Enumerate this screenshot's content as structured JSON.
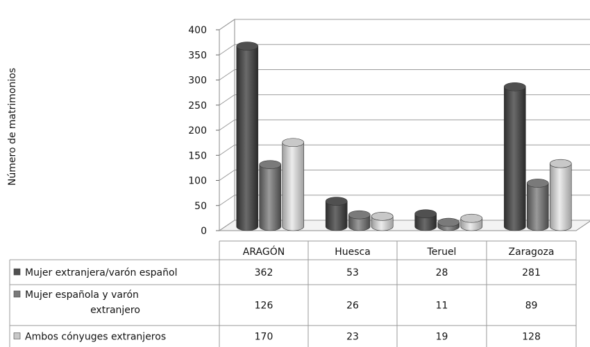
{
  "chart_data": {
    "type": "bar",
    "variant": "3d-cylinder-with-data-table",
    "ylabel": "Número de matrimonios",
    "xlabel": "",
    "title": "",
    "ylim": [
      0,
      400
    ],
    "yticks": [
      0,
      50,
      100,
      150,
      200,
      250,
      300,
      350,
      400
    ],
    "grid": true,
    "categories": [
      "ARAGÓN",
      "Huesca",
      "Teruel",
      "Zaragoza"
    ],
    "series": [
      {
        "name": "Mujer extranjera/varón español",
        "name_lines": [
          "Mujer extranjera/varón español"
        ],
        "color": "#505050",
        "values": [
          362,
          53,
          28,
          281
        ]
      },
      {
        "name": "Mujer española y varón extranjero",
        "name_lines": [
          "Mujer española y varón",
          "extranjero"
        ],
        "color": "#7a7a7a",
        "values": [
          126,
          26,
          11,
          89
        ]
      },
      {
        "name": "Ambos cónyuges extranjeros",
        "name_lines": [
          "Ambos cónyuges extranjeros"
        ],
        "color": "#c8c8c8",
        "values": [
          170,
          23,
          19,
          128
        ]
      }
    ]
  }
}
